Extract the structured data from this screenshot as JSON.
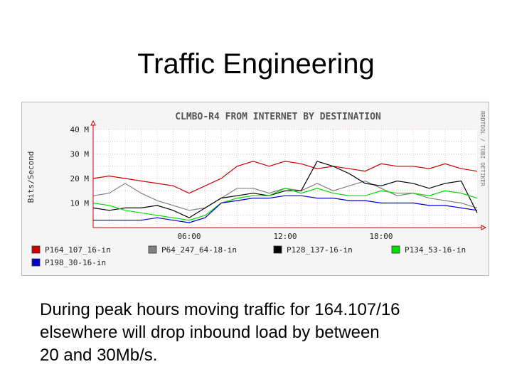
{
  "slide": {
    "title": "Traffic Engineering",
    "caption_lines": [
      "During peak hours moving traffic for 164.107/16",
      "elsewhere will drop inbound load by between",
      "20 and 30Mb/s."
    ]
  },
  "chart_data": {
    "type": "line",
    "title": "CLMBO-R4 FROM INTERNET BY DESTINATION",
    "ylabel": "Bits/Second",
    "side_label": "RRDTOOL / TOBI OETIKER",
    "ylim": [
      0,
      40
    ],
    "xlim": [
      0,
      24
    ],
    "y_ticks": [
      {
        "value": 10,
        "label": "10 M"
      },
      {
        "value": 20,
        "label": "20 M"
      },
      {
        "value": 30,
        "label": "30 M"
      },
      {
        "value": 40,
        "label": "40 M"
      }
    ],
    "x_ticks": [
      {
        "value": 6,
        "label": "06:00"
      },
      {
        "value": 12,
        "label": "12:00"
      },
      {
        "value": 18,
        "label": "18:00"
      }
    ],
    "legend_position": "bottom",
    "series": [
      {
        "name": "P164_107_16-in",
        "color": "#cc0000",
        "values": [
          [
            0,
            20
          ],
          [
            1,
            21
          ],
          [
            2,
            20
          ],
          [
            3,
            19
          ],
          [
            4,
            18
          ],
          [
            5,
            17
          ],
          [
            6,
            14
          ],
          [
            7,
            17
          ],
          [
            8,
            20
          ],
          [
            9,
            25
          ],
          [
            10,
            27
          ],
          [
            11,
            25
          ],
          [
            12,
            27
          ],
          [
            13,
            26
          ],
          [
            14,
            24
          ],
          [
            15,
            25
          ],
          [
            16,
            24
          ],
          [
            17,
            23
          ],
          [
            18,
            26
          ],
          [
            19,
            25
          ],
          [
            20,
            25
          ],
          [
            21,
            24
          ],
          [
            22,
            26
          ],
          [
            23,
            24
          ],
          [
            24,
            23
          ]
        ]
      },
      {
        "name": "P64_247_64-18-in",
        "color": "#808080",
        "values": [
          [
            0,
            13
          ],
          [
            1,
            14
          ],
          [
            2,
            18
          ],
          [
            3,
            14
          ],
          [
            4,
            11
          ],
          [
            5,
            9
          ],
          [
            6,
            7
          ],
          [
            7,
            8
          ],
          [
            8,
            12
          ],
          [
            9,
            16
          ],
          [
            10,
            16
          ],
          [
            11,
            14
          ],
          [
            12,
            16
          ],
          [
            13,
            15
          ],
          [
            14,
            18
          ],
          [
            15,
            15
          ],
          [
            16,
            17
          ],
          [
            17,
            19
          ],
          [
            18,
            16
          ],
          [
            19,
            13
          ],
          [
            20,
            14
          ],
          [
            21,
            12
          ],
          [
            22,
            11
          ],
          [
            23,
            10
          ],
          [
            24,
            8
          ]
        ]
      },
      {
        "name": "P128_137-16-in",
        "color": "#000000",
        "values": [
          [
            0,
            8
          ],
          [
            1,
            7
          ],
          [
            2,
            8
          ],
          [
            3,
            8
          ],
          [
            4,
            9
          ],
          [
            5,
            7
          ],
          [
            6,
            4
          ],
          [
            7,
            8
          ],
          [
            8,
            12
          ],
          [
            9,
            13
          ],
          [
            10,
            14
          ],
          [
            11,
            13
          ],
          [
            12,
            15
          ],
          [
            13,
            15
          ],
          [
            14,
            27
          ],
          [
            15,
            25
          ],
          [
            16,
            22
          ],
          [
            17,
            18
          ],
          [
            18,
            17
          ],
          [
            19,
            19
          ],
          [
            20,
            18
          ],
          [
            21,
            16
          ],
          [
            22,
            18
          ],
          [
            23,
            19
          ],
          [
            24,
            6
          ]
        ]
      },
      {
        "name": "P134_53-16-in",
        "color": "#00dd00",
        "values": [
          [
            0,
            10
          ],
          [
            1,
            9
          ],
          [
            2,
            7
          ],
          [
            3,
            6
          ],
          [
            4,
            5
          ],
          [
            5,
            4
          ],
          [
            6,
            3
          ],
          [
            7,
            5
          ],
          [
            8,
            10
          ],
          [
            9,
            12
          ],
          [
            10,
            13
          ],
          [
            11,
            13
          ],
          [
            12,
            16
          ],
          [
            13,
            14
          ],
          [
            14,
            16
          ],
          [
            15,
            14
          ],
          [
            16,
            13
          ],
          [
            17,
            13
          ],
          [
            18,
            15
          ],
          [
            19,
            14
          ],
          [
            20,
            14
          ],
          [
            21,
            13
          ],
          [
            22,
            15
          ],
          [
            23,
            14
          ],
          [
            24,
            12
          ]
        ]
      },
      {
        "name": "P198_30-16-in",
        "color": "#0000cc",
        "values": [
          [
            0,
            3
          ],
          [
            1,
            3
          ],
          [
            2,
            3
          ],
          [
            3,
            3
          ],
          [
            4,
            4
          ],
          [
            5,
            3
          ],
          [
            6,
            2
          ],
          [
            7,
            4
          ],
          [
            8,
            10
          ],
          [
            9,
            11
          ],
          [
            10,
            12
          ],
          [
            11,
            12
          ],
          [
            12,
            13
          ],
          [
            13,
            13
          ],
          [
            14,
            12
          ],
          [
            15,
            12
          ],
          [
            16,
            11
          ],
          [
            17,
            11
          ],
          [
            18,
            10
          ],
          [
            19,
            10
          ],
          [
            20,
            10
          ],
          [
            21,
            9
          ],
          [
            22,
            9
          ],
          [
            23,
            8
          ],
          [
            24,
            7
          ]
        ]
      }
    ]
  }
}
